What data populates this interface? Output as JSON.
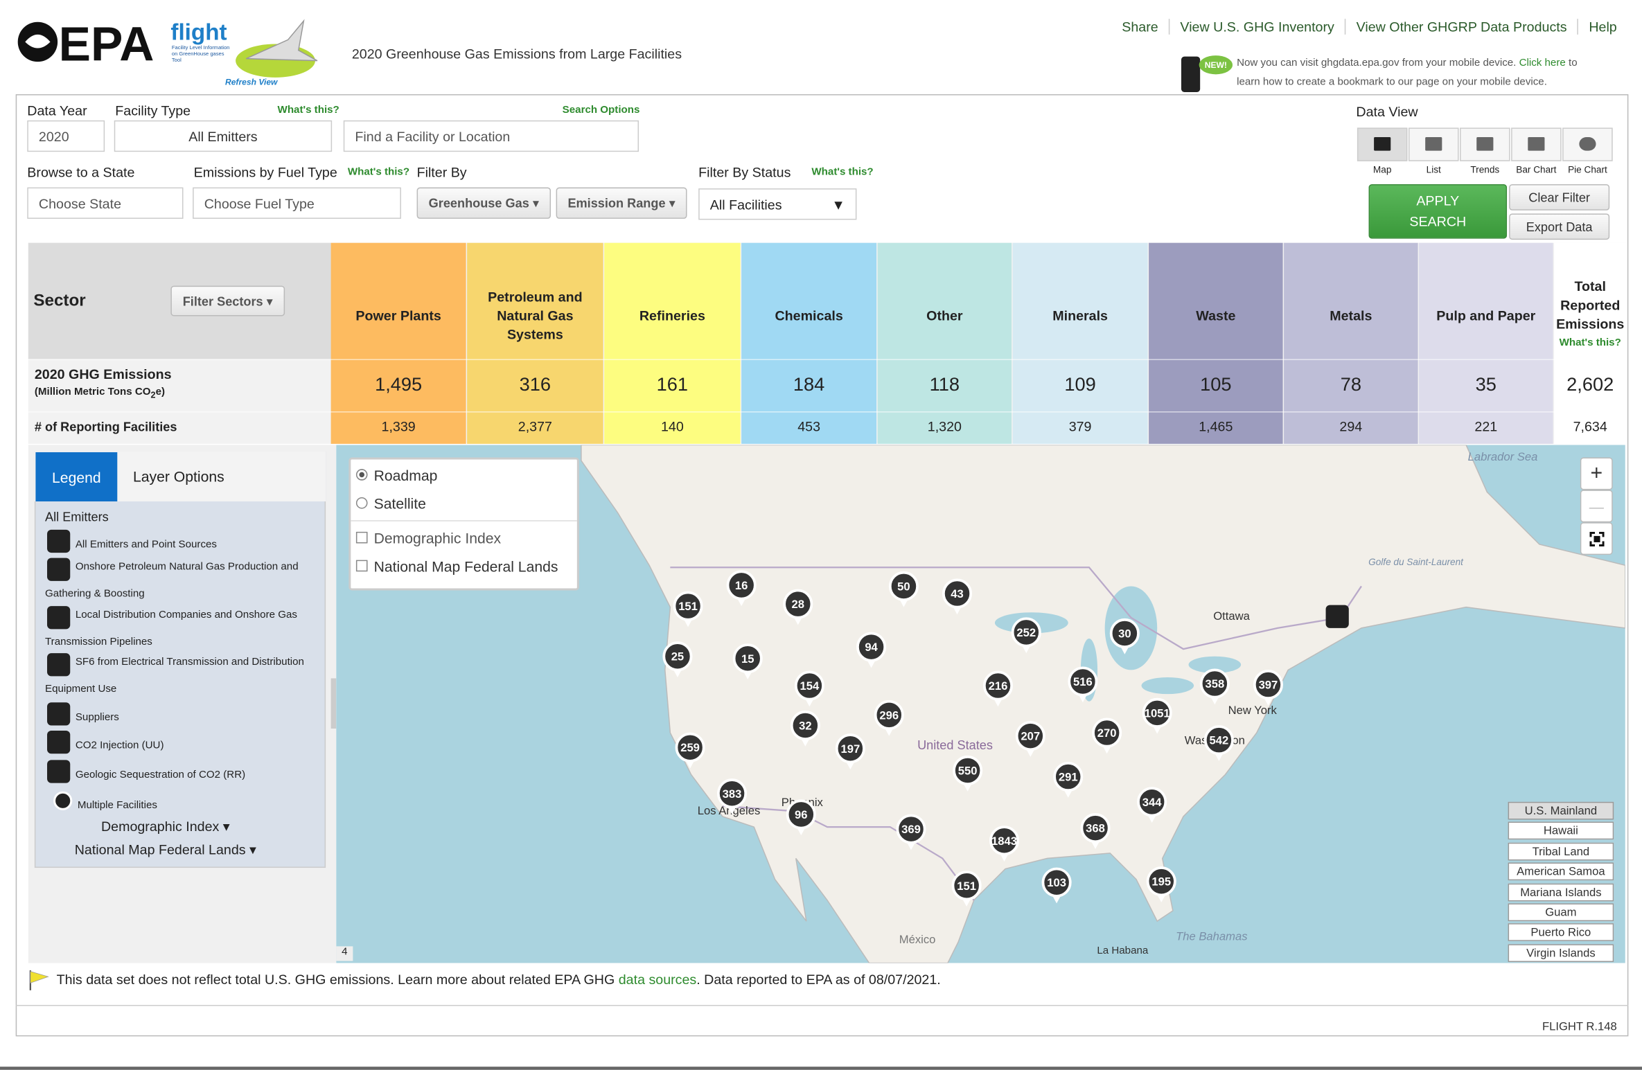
{
  "header": {
    "logo": "EPA",
    "flight": "flight",
    "flight_sub": "Facility Level Information on GreenHouse gases Tool",
    "refresh": "Refresh View",
    "title": "2020 Greenhouse Gas Emissions from Large Facilities",
    "nav": [
      "Share",
      "View U.S. GHG Inventory",
      "View Other GHGRP Data Products",
      "Help"
    ],
    "new_badge": "NEW!",
    "mobile_text": "Now you can visit ghgdata.epa.gov from your mobile device.",
    "mobile_link": "Click here",
    "mobile_text2": "to learn how to create a bookmark to our page on your mobile device."
  },
  "controls": {
    "data_year_label": "Data Year",
    "data_year": "2020",
    "facility_type_label": "Facility Type",
    "facility_whats_this": "What's this?",
    "facility_type": "All Emitters",
    "search_options": "Search Options",
    "search_placeholder": "Find a Facility or Location",
    "state_label": "Browse to a State",
    "state": "Choose State",
    "fuel_label": "Emissions by Fuel Type",
    "fuel_whats_this": "What's this?",
    "fuel": "Choose Fuel Type",
    "filter_by_label": "Filter By",
    "greenhouse_gas": "Greenhouse Gas",
    "emission_range": "Emission Range",
    "status_label": "Filter By Status",
    "status_whats_this": "What's this?",
    "status": "All Facilities",
    "data_view_label": "Data View",
    "views": [
      "Map",
      "List",
      "Trends",
      "Bar Chart",
      "Pie Chart"
    ],
    "apply_search": "APPLY SEARCH",
    "clear_filter": "Clear Filter",
    "export_data": "Export Data"
  },
  "sector_table": {
    "sector_label": "Sector",
    "filter_sectors": "Filter Sectors",
    "emissions_label": "2020 GHG Emissions",
    "emissions_unit_pre": "(Million Metric Tons CO",
    "emissions_unit_sub": "2",
    "emissions_unit_post": "e)",
    "facilities_label": "# of Reporting Facilities",
    "columns": [
      {
        "name": "Power Plants",
        "emissions": "1,495",
        "facilities": "1,339",
        "color": "#fdbb60"
      },
      {
        "name": "Petroleum and Natural Gas Systems",
        "emissions": "316",
        "facilities": "2,377",
        "color": "#f7d66e"
      },
      {
        "name": "Refineries",
        "emissions": "161",
        "facilities": "140",
        "color": "#fdfd80"
      },
      {
        "name": "Chemicals",
        "emissions": "184",
        "facilities": "453",
        "color": "#a0d9f3"
      },
      {
        "name": "Other",
        "emissions": "118",
        "facilities": "1,320",
        "color": "#bee6e3"
      },
      {
        "name": "Minerals",
        "emissions": "109",
        "facilities": "379",
        "color": "#d6eaf3"
      },
      {
        "name": "Waste",
        "emissions": "105",
        "facilities": "1,465",
        "color": "#9c9cbe"
      },
      {
        "name": "Metals",
        "emissions": "78",
        "facilities": "294",
        "color": "#bebed7"
      },
      {
        "name": "Pulp and Paper",
        "emissions": "35",
        "facilities": "221",
        "color": "#dddceb"
      }
    ],
    "total": {
      "name": "Total Reported Emissions",
      "whats_this": "What's this?",
      "emissions": "2,602",
      "facilities": "7,634"
    }
  },
  "legend": {
    "tabs": [
      "Legend",
      "Layer Options"
    ],
    "heading": "All Emitters",
    "items": [
      "All Emitters and Point Sources",
      "Onshore Petroleum Natural Gas Production and Gathering & Boosting",
      "Local Distribution Companies and Onshore Gas Transmission Pipelines",
      "SF6 from Electrical Transmission and Distribution Equipment Use",
      "Suppliers",
      "CO2 Injection (UU)",
      "Geologic Sequestration of CO2 (RR)",
      "Multiple Facilities"
    ],
    "layers": [
      "Demographic Index",
      "National Map Federal Lands"
    ]
  },
  "map": {
    "base_layers": [
      "Roadmap",
      "Satellite"
    ],
    "overlays": [
      "Demographic Index",
      "National Map Federal Lands"
    ],
    "zoom_in": "+",
    "zoom_out": "—",
    "page": "4",
    "places": [
      "Labrador Sea",
      "Ottawa",
      "New York",
      "Washington",
      "United States",
      "Los Angeles",
      "Phoenix",
      "México",
      "La Habana",
      "The Bahamas",
      "Golfe du Saint-Laurent"
    ],
    "markers": [
      "16",
      "151",
      "28",
      "50",
      "43",
      "94",
      "252",
      "30",
      "25",
      "15",
      "154",
      "216",
      "516",
      "358",
      "397",
      "296",
      "32",
      "1051",
      "270",
      "207",
      "542",
      "197",
      "259",
      "550",
      "291",
      "383",
      "344",
      "96",
      "369",
      "368",
      "1843",
      "195",
      "151",
      "103"
    ],
    "regions": [
      "U.S. Mainland",
      "Hawaii",
      "Tribal Land",
      "American Samoa",
      "Mariana Islands",
      "Guam",
      "Puerto Rico",
      "Virgin Islands"
    ]
  },
  "footer": {
    "notice_pre": "This data set does not reflect total U.S. GHG emissions. Learn more about related EPA GHG",
    "notice_link": "data sources",
    "notice_post": ". Data reported to EPA as of 08/07/2021.",
    "version": "FLIGHT R.148"
  }
}
